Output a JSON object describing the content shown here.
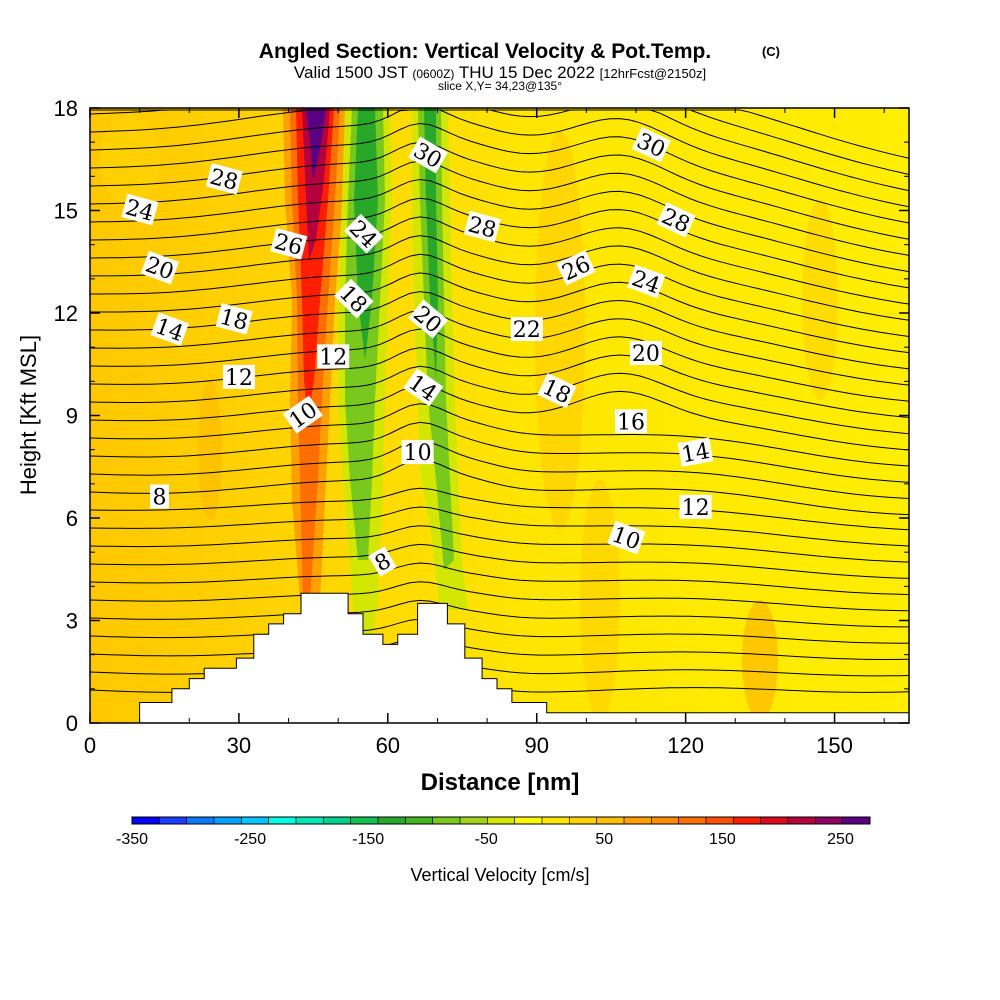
{
  "chart_data": {
    "type": "heatmap",
    "title": "Angled Section: Vertical Velocity & Pot.Temp.",
    "title_mark": "(C)",
    "subtitle_prefix": "Valid 1500 JST",
    "subtitle_small": "(0600Z)",
    "subtitle_main": "THU 15 Dec 2022",
    "subtitle_fcst": "[12hrFcst@2150z]",
    "slice_label": "slice X,Y= 34,23@135°",
    "xlabel": "Distance [nm]",
    "ylabel": "Height [Kft MSL]",
    "xlim": [
      0,
      165
    ],
    "ylim": [
      0,
      18
    ],
    "xticks": [
      "0",
      "30",
      "60",
      "90",
      "120",
      "150"
    ],
    "xtick_values": [
      0,
      30,
      60,
      90,
      120,
      150
    ],
    "yticks": [
      "0",
      "3",
      "6",
      "9",
      "12",
      "15",
      "18"
    ],
    "ytick_values": [
      0,
      3,
      6,
      9,
      12,
      15,
      18
    ],
    "colorbar": {
      "label": "Vertical Velocity [cm/s]",
      "min": -350,
      "max": 275,
      "step": 25,
      "tick_labels": [
        "-350",
        "-250",
        "-150",
        "-50",
        "50",
        "150",
        "250"
      ],
      "tick_values": [
        -350,
        -250,
        -150,
        -50,
        50,
        150,
        250
      ],
      "colors": [
        "#0000ff",
        "#1e3cff",
        "#0a78ff",
        "#00a0ff",
        "#00c8ff",
        "#00ffe0",
        "#00e6b4",
        "#00d28c",
        "#14be50",
        "#28a828",
        "#46b41e",
        "#78c81e",
        "#a0d21e",
        "#d2e600",
        "#fffa00",
        "#ffe600",
        "#ffd200",
        "#ffbe00",
        "#ffa000",
        "#ff8c00",
        "#ff6e00",
        "#ff5000",
        "#ff1e00",
        "#dc0a1e",
        "#b4003c",
        "#8c0064",
        "#5a0082"
      ]
    },
    "contour_labels": [
      {
        "x": 10,
        "y": 15.0,
        "label": "24",
        "angle": 15
      },
      {
        "x": 27,
        "y": 15.9,
        "label": "28",
        "angle": 15
      },
      {
        "x": 40,
        "y": 14.0,
        "label": "26",
        "angle": 15
      },
      {
        "x": 55,
        "y": 14.3,
        "label": "24",
        "angle": 45
      },
      {
        "x": 68,
        "y": 16.6,
        "label": "30",
        "angle": 30
      },
      {
        "x": 79,
        "y": 14.5,
        "label": "28",
        "angle": 15
      },
      {
        "x": 113,
        "y": 16.9,
        "label": "30",
        "angle": 25
      },
      {
        "x": 118,
        "y": 14.7,
        "label": "28",
        "angle": 25
      },
      {
        "x": 14,
        "y": 13.3,
        "label": "20",
        "angle": 20
      },
      {
        "x": 53,
        "y": 12.4,
        "label": "18",
        "angle": 45
      },
      {
        "x": 68,
        "y": 11.8,
        "label": "20",
        "angle": 40
      },
      {
        "x": 98,
        "y": 13.3,
        "label": "26",
        "angle": -25
      },
      {
        "x": 112,
        "y": 12.9,
        "label": "24",
        "angle": 20
      },
      {
        "x": 29,
        "y": 11.8,
        "label": "18",
        "angle": 15
      },
      {
        "x": 16,
        "y": 11.5,
        "label": "14",
        "angle": 20
      },
      {
        "x": 88,
        "y": 11.5,
        "label": "22",
        "angle": 0
      },
      {
        "x": 112,
        "y": 10.8,
        "label": "20",
        "angle": 0
      },
      {
        "x": 49,
        "y": 10.7,
        "label": "12",
        "angle": 0
      },
      {
        "x": 30,
        "y": 10.1,
        "label": "12",
        "angle": 0
      },
      {
        "x": 67,
        "y": 9.8,
        "label": "14",
        "angle": 35
      },
      {
        "x": 94,
        "y": 9.7,
        "label": "18",
        "angle": 25
      },
      {
        "x": 43,
        "y": 9.0,
        "label": "10",
        "angle": -35
      },
      {
        "x": 109,
        "y": 8.8,
        "label": "16",
        "angle": 0
      },
      {
        "x": 66,
        "y": 7.9,
        "label": "10",
        "angle": 0
      },
      {
        "x": 122,
        "y": 7.9,
        "label": "14",
        "angle": -10
      },
      {
        "x": 14,
        "y": 6.6,
        "label": "8",
        "angle": 0
      },
      {
        "x": 122,
        "y": 6.3,
        "label": "12",
        "angle": 0
      },
      {
        "x": 108,
        "y": 5.4,
        "label": "10",
        "angle": 20
      },
      {
        "x": 59,
        "y": 4.7,
        "label": "8",
        "angle": -30
      }
    ],
    "terrain_profile": [
      {
        "x": 0,
        "y": 0.0
      },
      {
        "x": 10,
        "y": 0.0
      },
      {
        "x": 10,
        "y": 0.6
      },
      {
        "x": 16.5,
        "y": 0.6
      },
      {
        "x": 16.5,
        "y": 1.0
      },
      {
        "x": 20,
        "y": 1.0
      },
      {
        "x": 20,
        "y": 1.3
      },
      {
        "x": 23,
        "y": 1.3
      },
      {
        "x": 23,
        "y": 1.6
      },
      {
        "x": 29.5,
        "y": 1.6
      },
      {
        "x": 29.5,
        "y": 1.9
      },
      {
        "x": 33,
        "y": 1.9
      },
      {
        "x": 33,
        "y": 2.6
      },
      {
        "x": 36,
        "y": 2.6
      },
      {
        "x": 36,
        "y": 2.9
      },
      {
        "x": 39,
        "y": 2.9
      },
      {
        "x": 39,
        "y": 3.2
      },
      {
        "x": 42.5,
        "y": 3.2
      },
      {
        "x": 42.5,
        "y": 3.8
      },
      {
        "x": 52,
        "y": 3.8
      },
      {
        "x": 52,
        "y": 3.2
      },
      {
        "x": 55,
        "y": 3.2
      },
      {
        "x": 55,
        "y": 2.6
      },
      {
        "x": 59,
        "y": 2.6
      },
      {
        "x": 59,
        "y": 2.3
      },
      {
        "x": 62,
        "y": 2.3
      },
      {
        "x": 62,
        "y": 2.6
      },
      {
        "x": 66,
        "y": 2.6
      },
      {
        "x": 66,
        "y": 3.5
      },
      {
        "x": 72,
        "y": 3.5
      },
      {
        "x": 72,
        "y": 2.9
      },
      {
        "x": 75.5,
        "y": 2.9
      },
      {
        "x": 75.5,
        "y": 1.9
      },
      {
        "x": 79,
        "y": 1.9
      },
      {
        "x": 79,
        "y": 1.3
      },
      {
        "x": 82,
        "y": 1.3
      },
      {
        "x": 82,
        "y": 1.0
      },
      {
        "x": 85,
        "y": 1.0
      },
      {
        "x": 85,
        "y": 0.6
      },
      {
        "x": 92,
        "y": 0.6
      },
      {
        "x": 92,
        "y": 0.3
      },
      {
        "x": 165,
        "y": 0.3
      },
      {
        "x": 165,
        "y": 0.0
      }
    ]
  }
}
